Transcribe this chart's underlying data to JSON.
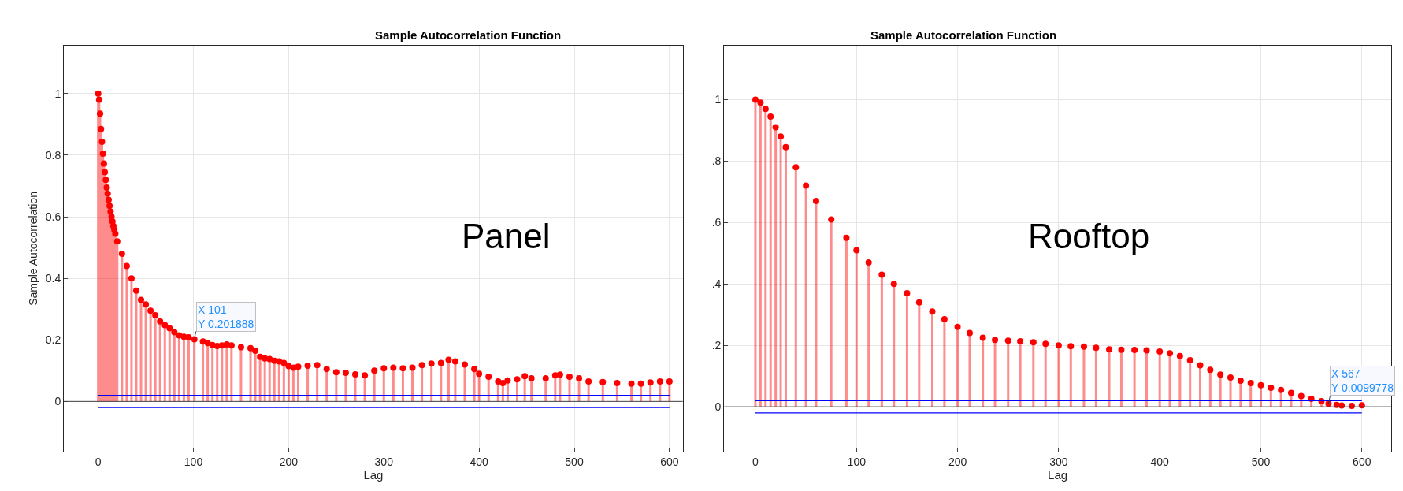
{
  "chart_data": [
    {
      "type": "lollipop",
      "title": "Sample Autocorrelation Function",
      "xlabel": "Lag",
      "ylabel": "Sample Autocorrelation",
      "x": [
        0,
        1,
        2,
        3,
        4,
        5,
        6,
        7,
        8,
        9,
        10,
        11,
        12,
        13,
        14,
        15,
        16,
        17,
        18,
        20,
        25,
        30,
        35,
        40,
        45,
        50,
        55,
        60,
        65,
        70,
        75,
        80,
        85,
        90,
        95,
        101,
        110,
        115,
        120,
        125,
        130,
        135,
        140,
        150,
        160,
        165,
        170,
        175,
        180,
        185,
        190,
        195,
        200,
        205,
        210,
        220,
        230,
        240,
        250,
        260,
        270,
        280,
        290,
        300,
        310,
        320,
        330,
        340,
        350,
        360,
        368,
        375,
        385,
        395,
        400,
        410,
        420,
        425,
        430,
        440,
        448,
        455,
        470,
        480,
        485,
        495,
        505,
        515,
        530,
        545,
        560,
        570,
        580,
        590,
        600
      ],
      "series": [
        {
          "color": "#ff0000",
          "values": [
            1,
            0.98,
            0.935,
            0.885,
            0.843,
            0.805,
            0.773,
            0.745,
            0.72,
            0.695,
            0.675,
            0.655,
            0.635,
            0.617,
            0.6,
            0.585,
            0.57,
            0.557,
            0.545,
            0.52,
            0.48,
            0.44,
            0.4,
            0.36,
            0.33,
            0.315,
            0.295,
            0.28,
            0.26,
            0.248,
            0.238,
            0.225,
            0.215,
            0.21,
            0.208,
            0.201888,
            0.195,
            0.19,
            0.183,
            0.18,
            0.182,
            0.185,
            0.182,
            0.176,
            0.173,
            0.165,
            0.145,
            0.14,
            0.138,
            0.132,
            0.13,
            0.125,
            0.115,
            0.11,
            0.113,
            0.116,
            0.118,
            0.105,
            0.095,
            0.093,
            0.088,
            0.085,
            0.1,
            0.108,
            0.11,
            0.108,
            0.11,
            0.118,
            0.123,
            0.125,
            0.135,
            0.13,
            0.12,
            0.105,
            0.09,
            0.08,
            0.065,
            0.06,
            0.068,
            0.072,
            0.082,
            0.075,
            0.075,
            0.085,
            0.087,
            0.08,
            0.075,
            0.065,
            0.063,
            0.06,
            0.058,
            0.058,
            0.062,
            0.065,
            0.065
          ]
        }
      ],
      "xlim": [
        -36,
        614
      ],
      "xticks": [
        0,
        100,
        200,
        300,
        400,
        500,
        600
      ],
      "ylim": [
        -0.163,
        1.156
      ],
      "yticks": [
        0,
        0.2,
        0.4,
        0.6,
        0.8,
        1
      ],
      "grid": true,
      "marker": "circle",
      "ref_lines": [
        {
          "axis": "y",
          "value": 0.02,
          "color": "#0000ff"
        },
        {
          "axis": "y",
          "value": -0.02,
          "color": "#0000ff"
        }
      ],
      "annotations": [
        {
          "text": "X 101\nY 0.201888",
          "x": 101,
          "y": 0.201888
        },
        "Panel"
      ]
    },
    {
      "type": "lollipop",
      "title": "Sample Autocorrelation Function",
      "xlabel": "Lag",
      "x": [
        0,
        5,
        10,
        15,
        20,
        25,
        30,
        40,
        50,
        60,
        75,
        90,
        100,
        112,
        125,
        137,
        150,
        162,
        175,
        187,
        200,
        212,
        225,
        237,
        250,
        262,
        275,
        287,
        300,
        312,
        325,
        337,
        350,
        362,
        375,
        387,
        400,
        410,
        420,
        430,
        440,
        450,
        460,
        470,
        480,
        490,
        500,
        510,
        520,
        530,
        540,
        550,
        560,
        567,
        575,
        580,
        590,
        600
      ],
      "series": [
        {
          "color": "#ff0000",
          "values": [
            1,
            0.99,
            0.97,
            0.945,
            0.91,
            0.88,
            0.845,
            0.78,
            0.72,
            0.67,
            0.61,
            0.55,
            0.51,
            0.47,
            0.43,
            0.4,
            0.37,
            0.34,
            0.31,
            0.285,
            0.26,
            0.24,
            0.225,
            0.218,
            0.215,
            0.213,
            0.21,
            0.205,
            0.2,
            0.197,
            0.196,
            0.192,
            0.187,
            0.186,
            0.185,
            0.184,
            0.18,
            0.174,
            0.165,
            0.152,
            0.135,
            0.12,
            0.105,
            0.095,
            0.085,
            0.077,
            0.07,
            0.062,
            0.055,
            0.045,
            0.035,
            0.026,
            0.018,
            0.0099778,
            0.006,
            0.004,
            0.003,
            0.005
          ]
        }
      ],
      "xlim": [
        -31,
        629
      ],
      "xticks": [
        0,
        100,
        200,
        300,
        400,
        500,
        600
      ],
      "ylim": [
        -0.146,
        1.176
      ],
      "yticks": [
        0,
        {
          "value": 0.2,
          "label": ".2"
        },
        {
          "value": 0.4,
          "label": ".4"
        },
        {
          "value": 0.6,
          "label": ".6"
        },
        {
          "value": 0.8,
          "label": ".8"
        },
        1
      ],
      "grid": true,
      "marker": "circle",
      "ref_lines": [
        {
          "axis": "y",
          "value": 0.02,
          "color": "#0000ff"
        },
        {
          "axis": "y",
          "value": -0.02,
          "color": "#0000ff"
        }
      ],
      "annotations": [
        {
          "text": "X 567\nY 0.0099778",
          "x": 567,
          "y": 0.0099778
        },
        "Rooftop"
      ]
    }
  ]
}
